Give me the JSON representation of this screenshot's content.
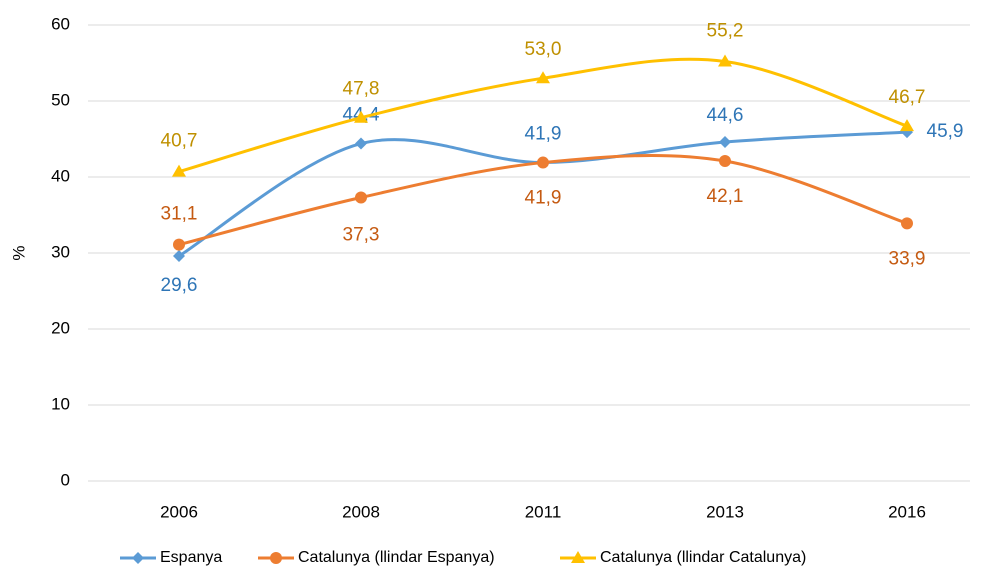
{
  "chart_data": {
    "type": "line",
    "y_label": "%",
    "categories": [
      "2006",
      "2008",
      "2011",
      "2013",
      "2016"
    ],
    "series": [
      {
        "name": "Espanya",
        "color": "#5b9bd5",
        "marker": "diamond",
        "values": [
          29.6,
          44.4,
          41.9,
          44.6,
          45.9
        ],
        "value_labels": [
          "29,6",
          "44,4",
          "41,9",
          "44,6",
          "45,9"
        ]
      },
      {
        "name": "Catalunya (llindar Espanya)",
        "color": "#ed7d31",
        "marker": "circle",
        "values": [
          31.1,
          37.3,
          41.9,
          42.1,
          33.9
        ],
        "value_labels": [
          "31,1",
          "37,3",
          "41,9",
          "42,1",
          "33,9"
        ]
      },
      {
        "name": "Catalunya (llindar Catalunya)",
        "color": "#ffc000",
        "marker": "triangle",
        "values": [
          40.7,
          47.8,
          53.0,
          55.2,
          46.7
        ],
        "value_labels": [
          "40,7",
          "47,8",
          "53,0",
          "55,2",
          "46,7"
        ]
      }
    ],
    "ylim": [
      0,
      60
    ],
    "yticks": [
      0,
      10,
      20,
      30,
      40,
      50,
      60
    ],
    "grid": true,
    "smooth": true,
    "legend": "bottom"
  }
}
